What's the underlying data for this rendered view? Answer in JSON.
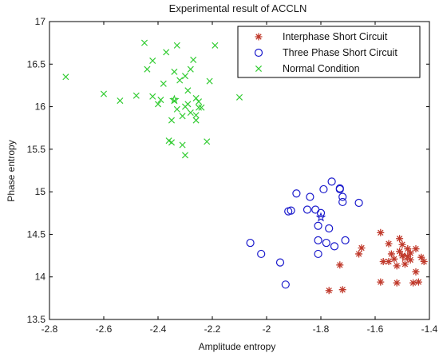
{
  "chart_data": {
    "type": "scatter",
    "title": "Experimental result of ACCLN",
    "xlabel": "Amplitude entropy",
    "ylabel": "Phase entropy",
    "xlim": [
      -2.8,
      -1.4
    ],
    "ylim": [
      13.5,
      17
    ],
    "xticks": [
      "-2.8",
      "-2.6",
      "-2.4",
      "-2.2",
      "-2",
      "-1.8",
      "-1.6",
      "-1.4"
    ],
    "yticks": [
      "13.5",
      "14",
      "14.5",
      "15",
      "15.5",
      "16",
      "16.5",
      "17"
    ],
    "grid": false,
    "legend_position": "top-right",
    "series": [
      {
        "name": "Interphase Short Circuit",
        "marker": "asterisk",
        "color": "#c0392b",
        "center": [
          -1.49,
          14.23
        ],
        "points": [
          [
            -1.77,
            13.84
          ],
          [
            -1.72,
            13.85
          ],
          [
            -1.73,
            14.14
          ],
          [
            -1.66,
            14.27
          ],
          [
            -1.65,
            14.34
          ],
          [
            -1.58,
            14.52
          ],
          [
            -1.57,
            14.18
          ],
          [
            -1.58,
            13.94
          ],
          [
            -1.55,
            14.39
          ],
          [
            -1.55,
            14.18
          ],
          [
            -1.54,
            14.27
          ],
          [
            -1.53,
            14.21
          ],
          [
            -1.52,
            14.13
          ],
          [
            -1.52,
            13.93
          ],
          [
            -1.51,
            14.3
          ],
          [
            -1.51,
            14.45
          ],
          [
            -1.5,
            14.38
          ],
          [
            -1.5,
            14.25
          ],
          [
            -1.49,
            14.15
          ],
          [
            -1.48,
            14.24
          ],
          [
            -1.48,
            14.33
          ],
          [
            -1.47,
            14.28
          ],
          [
            -1.47,
            14.2
          ],
          [
            -1.46,
            13.93
          ],
          [
            -1.45,
            14.06
          ],
          [
            -1.45,
            14.33
          ],
          [
            -1.44,
            13.94
          ],
          [
            -1.43,
            14.23
          ],
          [
            -1.42,
            14.18
          ]
        ]
      },
      {
        "name": "Three Phase Short Circuit",
        "marker": "circle",
        "color": "#1a1acc",
        "center": [
          -1.8,
          14.7
        ],
        "points": [
          [
            -2.06,
            14.4
          ],
          [
            -2.02,
            14.27
          ],
          [
            -1.95,
            14.17
          ],
          [
            -1.93,
            13.91
          ],
          [
            -1.92,
            14.77
          ],
          [
            -1.91,
            14.78
          ],
          [
            -1.89,
            14.98
          ],
          [
            -1.85,
            14.79
          ],
          [
            -1.84,
            14.94
          ],
          [
            -1.82,
            14.79
          ],
          [
            -1.81,
            14.27
          ],
          [
            -1.81,
            14.43
          ],
          [
            -1.81,
            14.6
          ],
          [
            -1.8,
            14.75
          ],
          [
            -1.79,
            15.03
          ],
          [
            -1.78,
            14.4
          ],
          [
            -1.77,
            14.57
          ],
          [
            -1.76,
            15.12
          ],
          [
            -1.75,
            14.36
          ],
          [
            -1.73,
            15.04
          ],
          [
            -1.73,
            15.03
          ],
          [
            -1.72,
            14.88
          ],
          [
            -1.72,
            14.94
          ],
          [
            -1.71,
            14.43
          ],
          [
            -1.66,
            14.87
          ]
        ]
      },
      {
        "name": "Normal Condition",
        "marker": "x",
        "color": "#33cc33",
        "center": [
          -2.34,
          16.08
        ],
        "points": [
          [
            -2.74,
            16.35
          ],
          [
            -2.6,
            16.15
          ],
          [
            -2.54,
            16.07
          ],
          [
            -2.48,
            16.13
          ],
          [
            -2.45,
            16.75
          ],
          [
            -2.44,
            16.44
          ],
          [
            -2.42,
            16.54
          ],
          [
            -2.42,
            16.12
          ],
          [
            -2.4,
            16.03
          ],
          [
            -2.39,
            16.08
          ],
          [
            -2.38,
            16.27
          ],
          [
            -2.37,
            16.64
          ],
          [
            -2.36,
            15.6
          ],
          [
            -2.35,
            15.58
          ],
          [
            -2.35,
            15.84
          ],
          [
            -2.34,
            16.41
          ],
          [
            -2.34,
            16.07
          ],
          [
            -2.33,
            16.72
          ],
          [
            -2.33,
            15.97
          ],
          [
            -2.32,
            16.31
          ],
          [
            -2.31,
            15.55
          ],
          [
            -2.31,
            15.89
          ],
          [
            -2.3,
            16.36
          ],
          [
            -2.3,
            16.0
          ],
          [
            -2.3,
            15.43
          ],
          [
            -2.29,
            16.19
          ],
          [
            -2.29,
            16.03
          ],
          [
            -2.28,
            16.44
          ],
          [
            -2.28,
            15.93
          ],
          [
            -2.27,
            16.55
          ],
          [
            -2.26,
            16.1
          ],
          [
            -2.26,
            15.9
          ],
          [
            -2.26,
            15.84
          ],
          [
            -2.25,
            16.06
          ],
          [
            -2.25,
            15.99
          ],
          [
            -2.24,
            15.99
          ],
          [
            -2.22,
            15.59
          ],
          [
            -2.21,
            16.3
          ],
          [
            -2.19,
            16.72
          ],
          [
            -2.1,
            16.11
          ]
        ]
      }
    ]
  }
}
